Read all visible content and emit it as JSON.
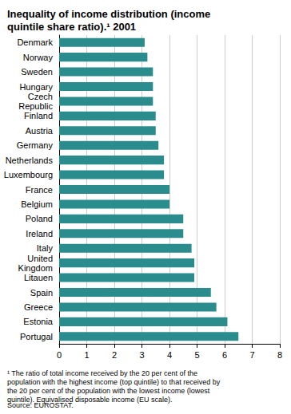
{
  "chart_data": {
    "type": "bar",
    "orientation": "horizontal",
    "title": "Inequality of income distribution (income quintile share ratio).¹ 2001",
    "categories": [
      "Denmark",
      "Norway",
      "Sweden",
      "Hungary",
      "Czech\nRepublic",
      "Finland",
      "Austria",
      "Germany",
      "Netherlands",
      "Luxembourg",
      "France",
      "Belgium",
      "Poland",
      "Ireland",
      "Italy",
      "United\nKingdom",
      "Litauen",
      "Spain",
      "Greece",
      "Estonia",
      "Portugal"
    ],
    "values": [
      3.1,
      3.2,
      3.4,
      3.4,
      3.4,
      3.5,
      3.5,
      3.6,
      3.8,
      3.8,
      4.0,
      4.0,
      4.5,
      4.5,
      4.8,
      4.9,
      4.9,
      5.5,
      5.7,
      6.1,
      6.5
    ],
    "color": "#2a8c8c",
    "xlim": [
      0,
      8
    ],
    "xticks": [
      0,
      1,
      2,
      3,
      4,
      5,
      6,
      7,
      8
    ],
    "grid": true,
    "annotations": [
      "¹ The ratio of total income received by the 20 per cent of the population with the highest income (top quintile) to that received by the 20 per cent of the population with the lowest income (lowest quintile). Equivalised disposable income (EU scale).",
      "Source: EUROSTAT."
    ]
  }
}
